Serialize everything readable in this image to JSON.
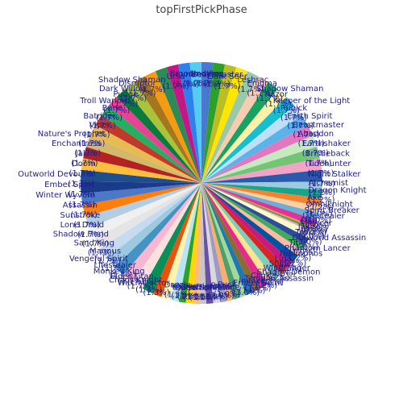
{
  "chart_data": {
    "type": "pie",
    "title": "topFirstPickPhase",
    "start_angle_deg": 90,
    "direction": "clockwise",
    "slices": [
      {
        "label": "Undying",
        "value": 1.7,
        "pct": "1.7%",
        "color": "#4878cf"
      },
      {
        "label": "Beastmaster",
        "value": 1.7,
        "pct": "1.7%",
        "color": "#2ca02c"
      },
      {
        "label": "Dark Seer",
        "value": 1.7,
        "pct": "1.7%",
        "color": "#bcbd22"
      },
      {
        "label": "Leshrac",
        "value": 1.7,
        "pct": "1.7%",
        "color": "#ffe600"
      },
      {
        "label": "Enigma",
        "value": 1.7,
        "pct": "1.7%",
        "color": "#9ac9a8"
      },
      {
        "label": "Shadow Shaman",
        "value": 1.7,
        "pct": "1.7%",
        "color": "#f7cdb1"
      },
      {
        "label": "Razor",
        "value": 1.7,
        "pct": "1.7%",
        "color": "#1aa260"
      },
      {
        "label": "Keeper of the Light",
        "value": 1.7,
        "pct": "1.7%",
        "color": "#fff2a8"
      },
      {
        "label": "Rubick",
        "value": 1.7,
        "pct": "1.7%",
        "color": "#17becf"
      },
      {
        "label": "Earth Spirit",
        "value": 1.7,
        "pct": "1.7%",
        "color": "#bde0f6"
      },
      {
        "label": "Beastmaster",
        "value": 1.7,
        "pct": "1.7%",
        "color": "#5ab4e8"
      },
      {
        "label": "Abaddon",
        "value": 1.7,
        "pct": "1.7%",
        "color": "#e377c2"
      },
      {
        "label": "Earthshaker",
        "value": 1.7,
        "pct": "1.7%",
        "color": "#c7e9c0"
      },
      {
        "label": "Bristleback",
        "value": 1.7,
        "pct": "1.7%",
        "color": "#74c476"
      },
      {
        "label": "Tidehunter",
        "value": 1.7,
        "pct": "1.7%",
        "color": "#f2a3c6"
      },
      {
        "label": "Night Stalker",
        "value": 1.7,
        "pct": "1.7%",
        "color": "#2b5aa8"
      },
      {
        "label": "Alchemist",
        "value": 1.2,
        "pct": "1.2%",
        "color": "#9ecae1"
      },
      {
        "label": "Dragon Knight",
        "value": 1.2,
        "pct": "1.2%",
        "color": "#17a589"
      },
      {
        "label": "Axe",
        "value": 1.2,
        "pct": "1.2%",
        "color": "#f58231"
      },
      {
        "label": "Omniknight",
        "value": 1.0,
        "pct": "1.0%",
        "color": "#fdd0a2"
      },
      {
        "label": "Spirit Breaker",
        "value": 1.0,
        "pct": "1.0%",
        "color": "#6baed6"
      },
      {
        "label": "Lifestealer",
        "value": 1.0,
        "pct": "1.0%",
        "color": "#dd3497"
      },
      {
        "label": "Lich",
        "value": 0.3,
        "pct": "0.3%",
        "color": "#fd8d3c"
      },
      {
        "label": "Lion",
        "value": 0.3,
        "pct": "0.3%",
        "color": "#31a354"
      },
      {
        "label": "Silencer",
        "value": 0.3,
        "pct": "0.3%",
        "color": "#fa9fb5"
      },
      {
        "label": "Jakiro",
        "value": 1.0,
        "pct": "1.0%",
        "color": "#ffffcc"
      },
      {
        "label": "Tusk",
        "value": 1.0,
        "pct": "1.0%",
        "color": "#2f4b9c"
      },
      {
        "label": "Outworld Assassin",
        "value": 1.0,
        "pct": "1.0%",
        "color": "#41ab5d"
      },
      {
        "label": "Tiny",
        "value": 1.0,
        "pct": "1.0%",
        "color": "#fcbba1"
      },
      {
        "label": "Phantom Lancer",
        "value": 1.2,
        "pct": "1.2%",
        "color": "#08519c"
      },
      {
        "label": "Necrophos",
        "value": 1.2,
        "pct": "1.2%",
        "color": "#c51b7d"
      },
      {
        "label": "Lina",
        "value": 1.2,
        "pct": "1.2%",
        "color": "#d62728"
      },
      {
        "label": "Sniper",
        "value": 1.2,
        "pct": "1.2%",
        "color": "#7fcdbb"
      },
      {
        "label": "Windranger",
        "value": 1.2,
        "pct": "1.2%",
        "color": "#fee391"
      },
      {
        "label": "Shadow Demon",
        "value": 1.2,
        "pct": "1.2%",
        "color": "#e7298a"
      },
      {
        "label": "Clinkz",
        "value": 1.2,
        "pct": "1.2%",
        "color": "#8c6d31"
      },
      {
        "label": "Templar Assassin",
        "value": 1.0,
        "pct": "1.0%",
        "color": "#1f77b4"
      },
      {
        "label": "Invoker",
        "value": 1.0,
        "pct": "1.0%",
        "color": "#a1d99b"
      },
      {
        "label": "Ember Spirit",
        "value": 1.0,
        "pct": "1.0%",
        "color": "#4e9f6e"
      },
      {
        "label": "Puck",
        "value": 1.0,
        "pct": "1.0%",
        "color": "#fdae6b"
      },
      {
        "label": "Bane",
        "value": 1.0,
        "pct": "1.0%",
        "color": "#9e9ac8"
      },
      {
        "label": "Disruptor",
        "value": 1.0,
        "pct": "1.0%",
        "color": "#d9d9d9"
      },
      {
        "label": "Skywrath Mage",
        "value": 1.0,
        "pct": "1.0%",
        "color": "#6a51a3"
      },
      {
        "label": "Queen of Pain",
        "value": 1.0,
        "pct": "1.0%",
        "color": "#c7c7c7"
      },
      {
        "label": "Storm Spirit",
        "value": 1.0,
        "pct": "1.0%",
        "color": "#ffbb78"
      },
      {
        "label": "Chen",
        "value": 1.0,
        "pct": "1.0%",
        "color": "#ffd700"
      },
      {
        "label": "Visage",
        "value": 1.0,
        "pct": "1.0%",
        "color": "#2ca02c"
      },
      {
        "label": "Dazzle",
        "value": 1.3,
        "pct": "1.3%",
        "color": "#b9e3f9"
      },
      {
        "label": "Witch Doctor",
        "value": 1.3,
        "pct": "1.3%",
        "color": "#fff3b0"
      },
      {
        "label": "Chaos Knight",
        "value": 1.3,
        "pct": "1.3%",
        "color": "#e6550d"
      },
      {
        "label": "Elder Titan",
        "value": 1.7,
        "pct": "1.7%",
        "color": "#0a8f5a"
      },
      {
        "label": "Monkey King",
        "value": 1.7,
        "pct": "1.7%",
        "color": "#fde0dd"
      },
      {
        "label": "Lifestealer",
        "value": 1.7,
        "pct": "1.7%",
        "color": "#f7b6d2"
      },
      {
        "label": "Vengeful Spirit",
        "value": 1.7,
        "pct": "1.7%",
        "color": "#4393c3"
      },
      {
        "label": "Magnus",
        "value": 1.7,
        "pct": "1.7%",
        "color": "#9ecae1"
      },
      {
        "label": "Sand King",
        "value": 1.7,
        "pct": "1.7%",
        "color": "#c6dbef"
      },
      {
        "label": "Shadow Fiend",
        "value": 1.7,
        "pct": "1.7%",
        "color": "#e5e5e5"
      },
      {
        "label": "Lone Druid",
        "value": 1.7,
        "pct": "1.7%",
        "color": "#f0f0f0"
      },
      {
        "label": "Sunstroke",
        "value": 1.7,
        "pct": "1.7%",
        "color": "#b3cde3"
      },
      {
        "label": "Assassin",
        "value": 1.7,
        "pct": "1.7%",
        "color": "#ff7f0e"
      },
      {
        "label": "Winter Wyvern",
        "value": 1.7,
        "pct": "1.7%",
        "color": "#4c78c8"
      },
      {
        "label": "Ember Spirit",
        "value": 1.7,
        "pct": "1.7%",
        "color": "#1a3a8a"
      },
      {
        "label": "Outworld Devourer",
        "value": 1.7,
        "pct": "1.7%",
        "color": "#1f4e8c"
      },
      {
        "label": "Doom",
        "value": 1.7,
        "pct": "1.7%",
        "color": "#ffbd3d"
      },
      {
        "label": "Jakiro",
        "value": 1.7,
        "pct": "1.7%",
        "color": "#b22222"
      },
      {
        "label": "Enchantress",
        "value": 1.7,
        "pct": "1.7%",
        "color": "#d4b86a"
      },
      {
        "label": "Nature's Prophet",
        "value": 1.7,
        "pct": "1.7%",
        "color": "#e7ba52"
      },
      {
        "label": "Viper",
        "value": 1.7,
        "pct": "1.7%",
        "color": "#c0392b"
      },
      {
        "label": "Batrider",
        "value": 1.7,
        "pct": "1.7%",
        "color": "#27ae60"
      },
      {
        "label": "Bane",
        "value": 1.7,
        "pct": "1.7%",
        "color": "#e84393"
      },
      {
        "label": "Troll Warlord",
        "value": 1.7,
        "pct": "1.7%",
        "color": "#0b7a3e"
      },
      {
        "label": "Pudge",
        "value": 1.7,
        "pct": "1.7%",
        "color": "#a9c439"
      },
      {
        "label": "Dark Willow",
        "value": 1.7,
        "pct": "1.7%",
        "color": "#a6761d"
      },
      {
        "label": "Disruptor",
        "value": 1.7,
        "pct": "1.7%",
        "color": "#f39c12"
      },
      {
        "label": "Shadow Shaman",
        "value": 1.7,
        "pct": "1.7%",
        "color": "#2e8b57"
      },
      {
        "label": "Ursa",
        "value": 1.7,
        "pct": "1.7%",
        "color": "#c71585"
      },
      {
        "label": "Luna",
        "value": 1.7,
        "pct": "1.7%",
        "color": "#2f80ed"
      },
      {
        "label": "Broodmother",
        "value": 1.7,
        "pct": "1.7%",
        "color": "#56ccf2"
      }
    ]
  }
}
